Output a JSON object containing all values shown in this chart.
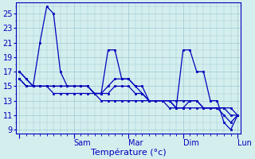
{
  "background_color": "#d4eeee",
  "grid_color": "#9ec8d0",
  "line_color": "#0000bb",
  "xlabel": "Température (°c)",
  "xlabel_fontsize": 8,
  "tick_fontsize": 7,
  "ylim": [
    8.5,
    26.5
  ],
  "yticks": [
    9,
    11,
    13,
    15,
    17,
    19,
    21,
    23,
    25
  ],
  "x_tick_positions": [
    0,
    8,
    16,
    24,
    32
  ],
  "x_tick_labels": [
    "",
    "Sam",
    "Mar",
    "Dim",
    "Lun"
  ],
  "num_points": 33,
  "series1": [
    17,
    16,
    15,
    21,
    26,
    25,
    17,
    15,
    15,
    15,
    15,
    14,
    14,
    20,
    20,
    16,
    16,
    15,
    15,
    13,
    13,
    13,
    12,
    12,
    20,
    20,
    17,
    17,
    13,
    13,
    10,
    9,
    11
  ],
  "series2": [
    16,
    15,
    15,
    15,
    15,
    15,
    15,
    15,
    15,
    15,
    15,
    14,
    14,
    15,
    16,
    16,
    16,
    15,
    14,
    13,
    13,
    13,
    13,
    12,
    12,
    13,
    13,
    12,
    12,
    12,
    12,
    12,
    11
  ],
  "series3": [
    16,
    15,
    15,
    15,
    15,
    15,
    15,
    15,
    15,
    15,
    15,
    14,
    14,
    14,
    15,
    15,
    15,
    14,
    14,
    13,
    13,
    13,
    13,
    13,
    13,
    13,
    13,
    12,
    12,
    12,
    12,
    11,
    11
  ],
  "series4": [
    17,
    16,
    15,
    15,
    15,
    14,
    14,
    14,
    14,
    14,
    14,
    14,
    13,
    13,
    13,
    13,
    13,
    13,
    13,
    13,
    13,
    13,
    13,
    12,
    12,
    12,
    12,
    12,
    12,
    12,
    11,
    10,
    11
  ]
}
